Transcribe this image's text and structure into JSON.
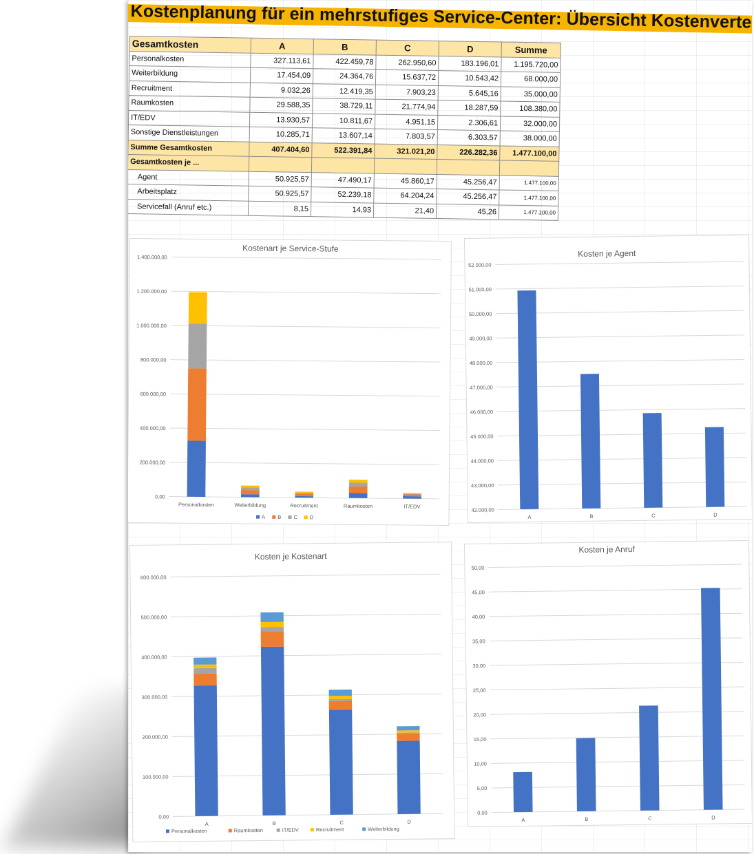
{
  "title": "Kostenplanung für ein mehrstufiges Service-Center: Übersicht Kostenverteilung",
  "table": {
    "header": {
      "label": "Gesamtkosten",
      "cols": [
        "A",
        "B",
        "C",
        "D"
      ],
      "sum": "Summe"
    },
    "rows": [
      {
        "label": "Personalkosten",
        "values": [
          "327.113,61",
          "422.459,78",
          "262.950,60",
          "183.196,01"
        ],
        "sum": "1.195.720,00"
      },
      {
        "label": "Weiterbildung",
        "values": [
          "17.454,09",
          "24.364,76",
          "15.637,72",
          "10.543,42"
        ],
        "sum": "68.000,00"
      },
      {
        "label": "Recruitment",
        "values": [
          "9.032,26",
          "12.419,35",
          "7.903,23",
          "5.645,16"
        ],
        "sum": "35.000,00"
      },
      {
        "label": "Raumkosten",
        "values": [
          "29.588,35",
          "38.729,11",
          "21.774,94",
          "18.287,59"
        ],
        "sum": "108.380,00"
      },
      {
        "label": "IT/EDV",
        "values": [
          "13.930,57",
          "10.811,67",
          "4.951,15",
          "2.306,61"
        ],
        "sum": "32.000,00"
      },
      {
        "label": "Sonstige Dienstleistungen",
        "values": [
          "10.285,71",
          "13.607,14",
          "7.803,57",
          "6.303,57"
        ],
        "sum": "38.000,00"
      }
    ],
    "total": {
      "label": "Summe Gesamtkosten",
      "values": [
        "407.404,60",
        "522.391,84",
        "321.021,20",
        "226.282,36"
      ],
      "sum": "1.477.100,00"
    },
    "sub_header": "Gesamtkosten je ...",
    "per_rows": [
      {
        "label": "Agent",
        "values": [
          "50.925,57",
          "47.490,17",
          "45.860,17",
          "45.256,47"
        ],
        "sum": "1.477.100,00"
      },
      {
        "label": "Arbeitsplatz",
        "values": [
          "50.925,57",
          "52.239,18",
          "64.204,24",
          "45.256,47"
        ],
        "sum": "1.477.100,00"
      },
      {
        "label": "Servicefall (Anruf etc.)",
        "values": [
          "8,15",
          "14,93",
          "21,40",
          "45,26"
        ],
        "sum": "1.477.100,00"
      }
    ]
  },
  "colors": {
    "blue": "#4472c4",
    "orange": "#ed7d31",
    "gray": "#a5a5a5",
    "yellow": "#ffc000",
    "lightblue": "#5b9bd5",
    "title_bar": "#f6b300",
    "table_header": "#fde5a6"
  },
  "chart_data": [
    {
      "type": "bar",
      "stacked": true,
      "title": "Kostenart je Service-Stufe",
      "categories": [
        "Personalkosten",
        "Weiterbildung",
        "Recruitment",
        "Raumkosten",
        "IT/EDV"
      ],
      "series": [
        {
          "name": "A",
          "values": [
            327113.61,
            17454.09,
            9032.26,
            29588.35,
            13930.57
          ]
        },
        {
          "name": "B",
          "values": [
            422459.78,
            24364.76,
            12419.35,
            38729.11,
            10811.67
          ]
        },
        {
          "name": "C",
          "values": [
            262950.6,
            15637.72,
            7903.23,
            21774.94,
            4951.15
          ]
        },
        {
          "name": "D",
          "values": [
            183196.01,
            10543.42,
            5645.16,
            18287.59,
            2306.61
          ]
        }
      ],
      "ylim": [
        0,
        1400000
      ],
      "yticks": [
        "0,00",
        "200.000,00",
        "400.000,00",
        "600.000,00",
        "800.000,00",
        "1.000.000,00",
        "1.200.000,00",
        "1.400.000,00"
      ],
      "legend": "bottom",
      "grid": true
    },
    {
      "type": "bar",
      "title": "Kosten je Agent",
      "categories": [
        "A",
        "B",
        "C",
        "D"
      ],
      "values": [
        50925.57,
        47490.17,
        45860.17,
        45256.47
      ],
      "ylim": [
        42000,
        52000
      ],
      "yticks": [
        "42.000,00",
        "43.000,00",
        "44.000,00",
        "45.000,00",
        "46.000,00",
        "47.000,00",
        "48.000,00",
        "49.000,00",
        "50.000,00",
        "51.000,00",
        "52.000,00"
      ],
      "grid": true
    },
    {
      "type": "bar",
      "stacked": true,
      "title": "Kosten je Kostenart",
      "categories": [
        "A",
        "B",
        "C",
        "D"
      ],
      "series": [
        {
          "name": "Personalkosten",
          "values": [
            327113.61,
            422459.78,
            262950.6,
            183196.01
          ]
        },
        {
          "name": "Raumkosten",
          "values": [
            29588.35,
            38729.11,
            21774.94,
            18287.59
          ]
        },
        {
          "name": "IT/EDV",
          "values": [
            13930.57,
            10811.67,
            4951.15,
            2306.61
          ]
        },
        {
          "name": "Recruitment",
          "values": [
            9032.26,
            12419.35,
            7903.23,
            5645.16
          ]
        },
        {
          "name": "Weiterbildung",
          "values": [
            17454.09,
            24364.76,
            15637.72,
            10543.42
          ]
        }
      ],
      "ylim": [
        0,
        600000
      ],
      "yticks": [
        "0,00",
        "100.000,00",
        "200.000,00",
        "300.000,00",
        "400.000,00",
        "500.000,00",
        "600.000,00"
      ],
      "legend": "bottom",
      "grid": true
    },
    {
      "type": "bar",
      "title": "Kosten je Anruf",
      "categories": [
        "A",
        "B",
        "C",
        "D"
      ],
      "values": [
        8.15,
        14.93,
        21.4,
        45.26
      ],
      "ylim": [
        0,
        50
      ],
      "yticks": [
        "0,00",
        "5,00",
        "10,00",
        "15,00",
        "20,00",
        "25,00",
        "30,00",
        "35,00",
        "40,00",
        "45,00",
        "50,00"
      ],
      "grid": true
    }
  ]
}
